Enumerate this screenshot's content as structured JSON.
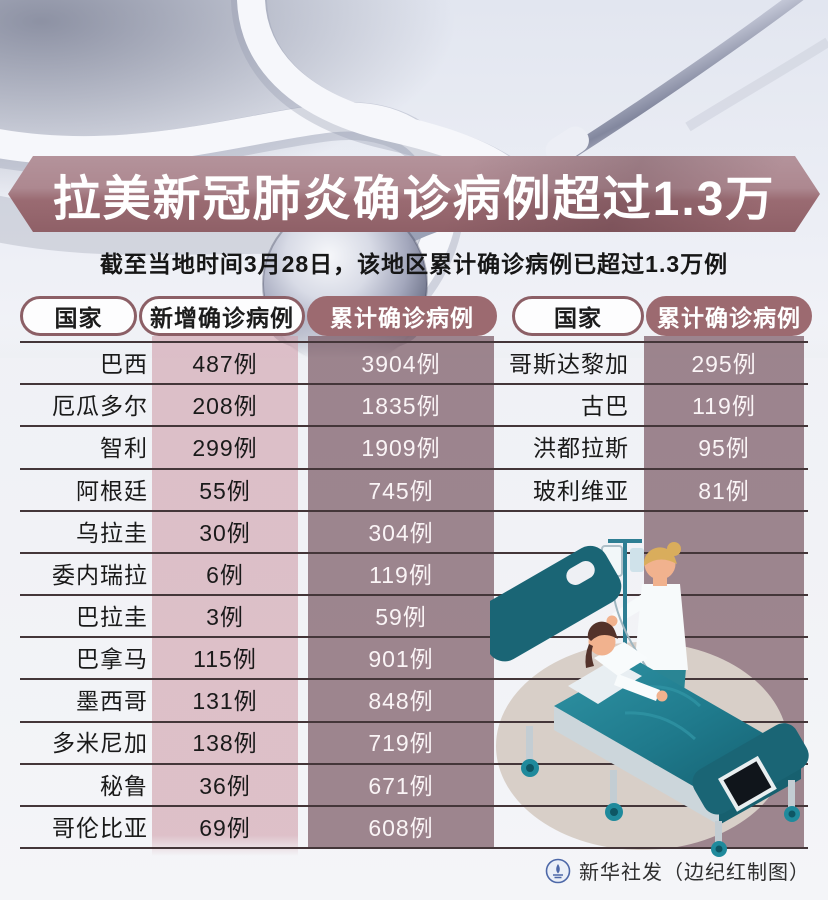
{
  "banner": {
    "title": "拉美新冠肺炎确诊病例超过1.3万"
  },
  "subtitle": "截至当地时间3月28日，该地区累计确诊病例已超过1.3万例",
  "credit": {
    "logo": "xinhua-emblem",
    "text": "新华社发（边纪红制图）"
  },
  "colors": {
    "banner_light": "#b4939b",
    "banner_dark": "#9a6b72",
    "pill_border": "#8c5f66",
    "pill_dark_bg": "#9c6a70",
    "band_pink": "#dcc2c9",
    "band_mauve": "#a1878f",
    "divider": "#443639",
    "value_text_light": "#ffffff",
    "bed_teal": "#1f7a8c",
    "floor_beige": "#d8cfc8"
  },
  "chart_data": {
    "type": "table",
    "title": "拉美新冠肺炎确诊病例超过1.3万",
    "subtitle": "截至当地时间3月28日，该地区累计确诊病例已超过1.3万例",
    "tables": [
      {
        "columns": [
          "国家",
          "新增确诊病例",
          "累计确诊病例"
        ],
        "rows": [
          [
            "巴西",
            "487例",
            "3904例"
          ],
          [
            "厄瓜多尔",
            "208例",
            "1835例"
          ],
          [
            "智利",
            "299例",
            "1909例"
          ],
          [
            "阿根廷",
            "55例",
            "745例"
          ],
          [
            "乌拉圭",
            "30例",
            "304例"
          ],
          [
            "委内瑞拉",
            "6例",
            "119例"
          ],
          [
            "巴拉圭",
            "3例",
            "59例"
          ],
          [
            "巴拿马",
            "115例",
            "901例"
          ],
          [
            "墨西哥",
            "131例",
            "848例"
          ],
          [
            "多米尼加",
            "138例",
            "719例"
          ],
          [
            "秘鲁",
            "36例",
            "671例"
          ],
          [
            "哥伦比亚",
            "69例",
            "608例"
          ]
        ]
      },
      {
        "columns": [
          "国家",
          "累计确诊病例"
        ],
        "rows": [
          [
            "哥斯达黎加",
            "295例"
          ],
          [
            "古巴",
            "119例"
          ],
          [
            "洪都拉斯",
            "95例"
          ],
          [
            "玻利维亚",
            "81例"
          ]
        ]
      }
    ]
  }
}
